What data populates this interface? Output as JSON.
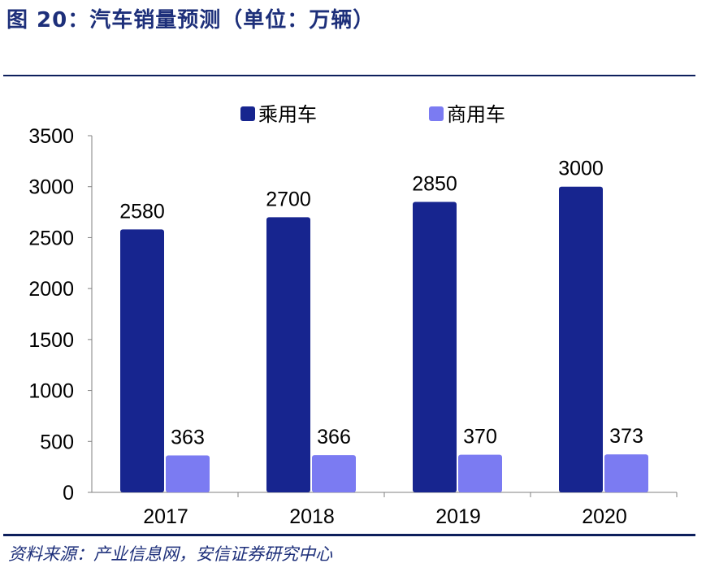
{
  "figure": {
    "title": "图 20：汽车销量预测（单位：万辆）",
    "source": "资料来源：产业信息网，安信证券研究中心"
  },
  "colors": {
    "passenger": "#17258f",
    "commercial": "#7b7bf2",
    "rule": "#0d1f5c",
    "title": "#1d2f7a"
  },
  "chart_data": {
    "type": "bar",
    "title": "汽车销量预测（单位：万辆）",
    "categories": [
      "2017",
      "2018",
      "2019",
      "2020"
    ],
    "series": [
      {
        "name": "乘用车",
        "values": [
          2580,
          2700,
          2850,
          3000
        ]
      },
      {
        "name": "商用车",
        "values": [
          363,
          366,
          370,
          373
        ]
      }
    ],
    "ylim": [
      0,
      3500
    ],
    "yticks": [
      0,
      500,
      1000,
      1500,
      2000,
      2500,
      3000,
      3500
    ],
    "xlabel": "",
    "ylabel": "",
    "legend": "top-center",
    "grid": false
  }
}
